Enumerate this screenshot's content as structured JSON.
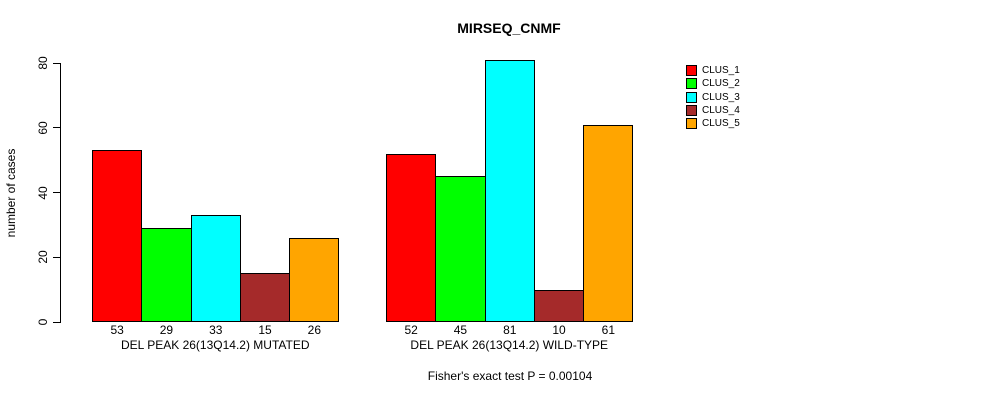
{
  "chart_data": {
    "type": "bar",
    "title": "MIRSEQ_CNMF",
    "ylabel": "number of cases",
    "ylim": [
      0,
      80
    ],
    "yticks": [
      0,
      20,
      40,
      60,
      80
    ],
    "grid": false,
    "legend_position": "right",
    "series": [
      {
        "name": "CLUS_1",
        "color": "#FF0000"
      },
      {
        "name": "CLUS_2",
        "color": "#00FF00"
      },
      {
        "name": "CLUS_3",
        "color": "#00FFFF"
      },
      {
        "name": "CLUS_4",
        "color": "#A52A2A"
      },
      {
        "name": "CLUS_5",
        "color": "#FFA500"
      }
    ],
    "groups": [
      {
        "label": "DEL PEAK 26(13Q14.2) MUTATED",
        "values": [
          53,
          29,
          33,
          15,
          26
        ]
      },
      {
        "label": "DEL PEAK 26(13Q14.2) WILD-TYPE",
        "values": [
          52,
          45,
          81,
          10,
          61
        ]
      }
    ],
    "bar_value_labels": true,
    "annotation": "Fisher's exact test P = 0.00104"
  }
}
